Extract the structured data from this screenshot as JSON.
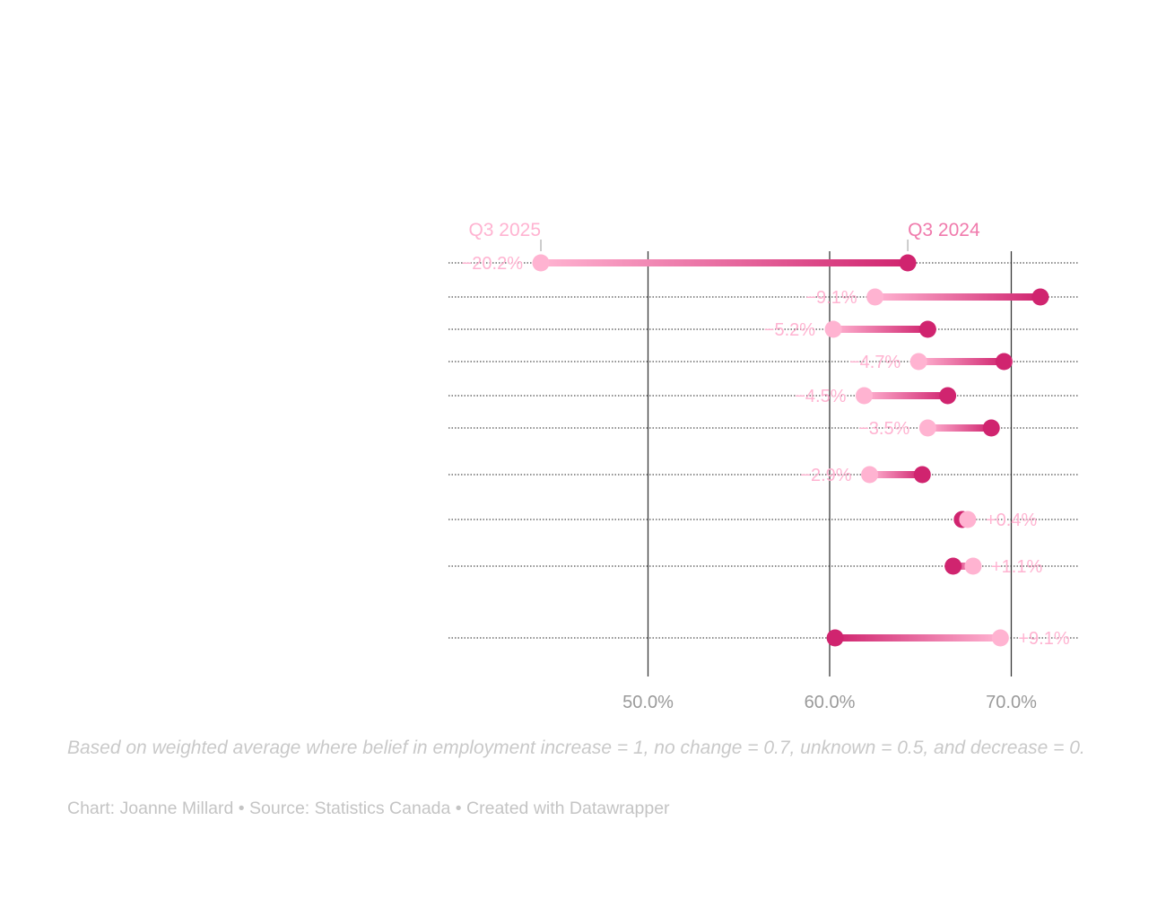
{
  "chart_data": {
    "type": "dot",
    "series": [
      {
        "name": "Q3 2024",
        "values": [
          64.3,
          71.6,
          65.4,
          69.6,
          66.5,
          68.9,
          65.1,
          67.3,
          66.8,
          60.3
        ]
      },
      {
        "name": "Q3 2025",
        "values": [
          44.1,
          62.5,
          60.2,
          64.9,
          61.9,
          65.4,
          62.2,
          67.6,
          67.9,
          69.4
        ]
      }
    ],
    "change_labels": [
      "−20.2%",
      "−9.1%",
      "−5.2%",
      "−4.7%",
      "−4.5%",
      "−3.5%",
      "−2.9%",
      "+0.4%",
      "+1.1%",
      "+9.1%"
    ],
    "x_ticks": [
      50,
      60,
      70
    ],
    "x_tick_labels": [
      "50.0%",
      "60.0%",
      "70.0%"
    ],
    "xlim": [
      39,
      74
    ],
    "grid": "vertical gridlines at ticks, dotted row lines",
    "colors": {
      "q3_2024": "#d0246f",
      "q3_2025": "#ffb3d1",
      "axis": "#3a3a3a",
      "tick_text": "#9a9a9a"
    }
  },
  "legend": {
    "q3_2025": "Q3 2025",
    "q3_2024": "Q3 2024"
  },
  "notes": "Based on weighted average where belief in employment increase = 1, no change = 0.7, unknown = 0.5, and decrease = 0.",
  "byline": "Chart: Joanne Millard • Source: Statistics Canada • Created with Datawrapper"
}
